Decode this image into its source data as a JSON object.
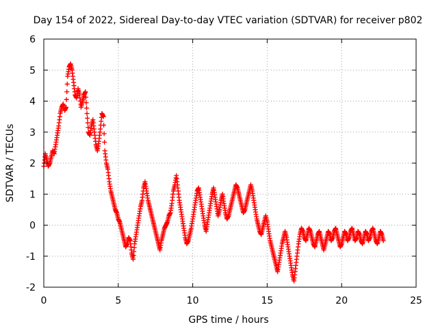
{
  "chart_data": {
    "type": "scatter",
    "title": "Day 154 of 2022, Sidereal Day-to-day VTEC variation (SDTVAR) for receiver p802",
    "xlabel": "GPS time / hours",
    "ylabel": "SDTVAR / TECUs",
    "xlim": [
      0,
      25
    ],
    "ylim": [
      -2,
      6
    ],
    "xticks": [
      "0",
      "5",
      "10",
      "15",
      "20",
      "25"
    ],
    "yticks": [
      "-2",
      "-1",
      "0",
      "1",
      "2",
      "3",
      "4",
      "5",
      "6"
    ],
    "grid": true,
    "marker": "+",
    "color": "#ff0000",
    "series": [
      {
        "name": "SDTVAR",
        "x": [
          0.0,
          0.1,
          0.2,
          0.3,
          0.4,
          0.5,
          0.6,
          0.7,
          0.8,
          0.9,
          1.0,
          1.1,
          1.2,
          1.3,
          1.4,
          1.5,
          1.6,
          1.7,
          1.8,
          1.9,
          2.0,
          2.1,
          2.2,
          2.3,
          2.4,
          2.5,
          2.6,
          2.7,
          2.8,
          2.9,
          3.0,
          3.1,
          3.2,
          3.3,
          3.4,
          3.5,
          3.6,
          3.7,
          3.8,
          3.9,
          4.0,
          4.1,
          4.2,
          4.3,
          4.4,
          4.5,
          4.6,
          4.7,
          4.8,
          4.9,
          5.0,
          5.1,
          5.2,
          5.3,
          5.4,
          5.5,
          5.6,
          5.7,
          5.8,
          5.9,
          6.0,
          6.1,
          6.2,
          6.3,
          6.4,
          6.5,
          6.6,
          6.7,
          6.8,
          6.9,
          7.0,
          7.1,
          7.2,
          7.3,
          7.4,
          7.5,
          7.6,
          7.7,
          7.8,
          7.9,
          8.0,
          8.1,
          8.2,
          8.3,
          8.4,
          8.5,
          8.6,
          8.7,
          8.8,
          8.9,
          9.0,
          9.1,
          9.2,
          9.3,
          9.4,
          9.5,
          9.6,
          9.7,
          9.8,
          9.9,
          10.0,
          10.1,
          10.2,
          10.3,
          10.4,
          10.5,
          10.6,
          10.7,
          10.8,
          10.9,
          11.0,
          11.1,
          11.2,
          11.3,
          11.4,
          11.5,
          11.6,
          11.7,
          11.8,
          11.9,
          12.0,
          12.1,
          12.2,
          12.3,
          12.4,
          12.5,
          12.6,
          12.7,
          12.8,
          12.9,
          13.0,
          13.1,
          13.2,
          13.3,
          13.4,
          13.5,
          13.6,
          13.7,
          13.8,
          13.9,
          14.0,
          14.1,
          14.2,
          14.3,
          14.4,
          14.5,
          14.6,
          14.7,
          14.8,
          14.9,
          15.0,
          15.1,
          15.2,
          15.3,
          15.4,
          15.5,
          15.6,
          15.7,
          15.8,
          15.9,
          16.0,
          16.1,
          16.2,
          16.3,
          16.4,
          16.5,
          16.6,
          16.7,
          16.8,
          16.9,
          17.0,
          17.1,
          17.2,
          17.3,
          17.4,
          17.5,
          17.6,
          17.7,
          17.8,
          17.9,
          18.0,
          18.1,
          18.2,
          18.3,
          18.4,
          18.5,
          18.6,
          18.7,
          18.8,
          18.9,
          19.0,
          19.1,
          19.2,
          19.3,
          19.4,
          19.5,
          19.6,
          19.7,
          19.8,
          19.9,
          20.0,
          20.1,
          20.2,
          20.3,
          20.4,
          20.5,
          20.6,
          20.7,
          20.8,
          20.9,
          21.0,
          21.1,
          21.2,
          21.3,
          21.4,
          21.5,
          21.6,
          21.7,
          21.8,
          21.9,
          22.0,
          22.1,
          22.2,
          22.3,
          22.4,
          22.5,
          22.6,
          22.7,
          22.8
        ],
        "y": [
          1.9,
          2.3,
          2.1,
          1.9,
          2.0,
          2.2,
          2.4,
          2.3,
          2.6,
          2.9,
          3.2,
          3.6,
          3.8,
          3.9,
          3.7,
          3.8,
          4.8,
          5.1,
          5.2,
          5.0,
          4.6,
          4.2,
          4.1,
          4.4,
          4.2,
          3.8,
          4.0,
          4.2,
          4.3,
          3.6,
          3.0,
          2.9,
          3.2,
          3.4,
          3.0,
          2.6,
          2.4,
          2.7,
          3.1,
          3.6,
          3.5,
          2.4,
          2.0,
          1.8,
          1.4,
          1.1,
          0.9,
          0.7,
          0.5,
          0.4,
          0.2,
          0.1,
          -0.1,
          -0.3,
          -0.5,
          -0.7,
          -0.6,
          -0.4,
          -0.5,
          -0.9,
          -1.1,
          -0.6,
          -0.3,
          0.0,
          0.3,
          0.6,
          0.8,
          1.2,
          1.4,
          1.1,
          0.8,
          0.6,
          0.4,
          0.2,
          0.0,
          -0.2,
          -0.4,
          -0.6,
          -0.8,
          -0.5,
          -0.3,
          -0.1,
          0.0,
          0.1,
          0.3,
          0.4,
          0.7,
          1.1,
          1.3,
          1.6,
          1.2,
          0.8,
          0.5,
          0.2,
          -0.1,
          -0.4,
          -0.6,
          -0.5,
          -0.3,
          -0.1,
          0.2,
          0.5,
          0.8,
          1.1,
          1.2,
          0.9,
          0.6,
          0.3,
          0.0,
          -0.2,
          0.1,
          0.4,
          0.7,
          1.0,
          1.2,
          0.9,
          0.6,
          0.3,
          0.5,
          0.8,
          1.0,
          0.7,
          0.4,
          0.2,
          0.3,
          0.5,
          0.7,
          0.9,
          1.1,
          1.3,
          1.2,
          1.0,
          0.8,
          0.6,
          0.4,
          0.5,
          0.7,
          0.9,
          1.1,
          1.3,
          1.1,
          0.8,
          0.5,
          0.2,
          0.0,
          -0.2,
          -0.3,
          -0.1,
          0.1,
          0.3,
          0.1,
          -0.2,
          -0.5,
          -0.7,
          -0.9,
          -1.1,
          -1.3,
          -1.5,
          -1.2,
          -0.9,
          -0.6,
          -0.4,
          -0.2,
          -0.4,
          -0.7,
          -1.0,
          -1.3,
          -1.6,
          -1.8,
          -1.4,
          -1.0,
          -0.6,
          -0.3,
          -0.1,
          -0.2,
          -0.4,
          -0.5,
          -0.3,
          -0.1,
          -0.2,
          -0.4,
          -0.6,
          -0.7,
          -0.5,
          -0.3,
          -0.2,
          -0.4,
          -0.6,
          -0.8,
          -0.6,
          -0.4,
          -0.2,
          -0.3,
          -0.5,
          -0.4,
          -0.2,
          -0.1,
          -0.3,
          -0.5,
          -0.7,
          -0.6,
          -0.4,
          -0.2,
          -0.3,
          -0.5,
          -0.4,
          -0.2,
          -0.1,
          -0.3,
          -0.5,
          -0.4,
          -0.2,
          -0.3,
          -0.5,
          -0.6,
          -0.4,
          -0.2,
          -0.3,
          -0.5,
          -0.4,
          -0.2,
          -0.1,
          -0.3,
          -0.5,
          -0.6,
          -0.4,
          -0.2,
          -0.3,
          -0.5
        ]
      }
    ]
  }
}
